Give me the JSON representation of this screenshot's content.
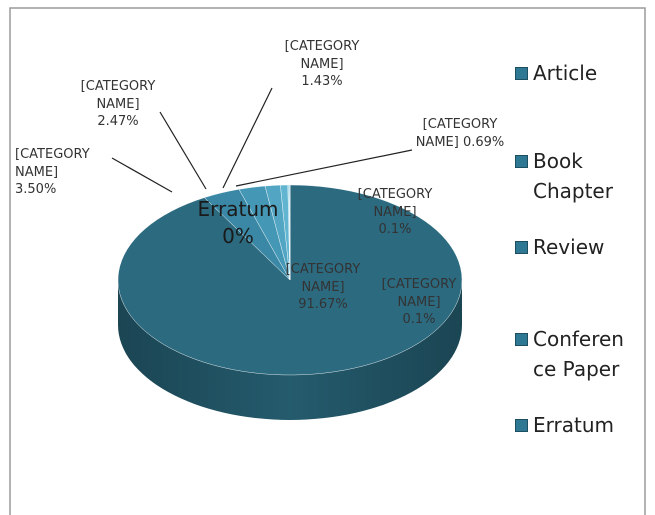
{
  "chart_data": {
    "type": "pie",
    "categories": [
      "[CATEGORY NAME]",
      "[CATEGORY NAME]",
      "[CATEGORY NAME]",
      "[CATEGORY NAME]",
      "[CATEGORY NAME]",
      "[CATEGORY NAME]",
      "[CATEGORY NAME]",
      "Erratum"
    ],
    "values": [
      91.67,
      3.5,
      2.47,
      1.43,
      0.69,
      0.1,
      0.1,
      0
    ],
    "value_labels": [
      "91.67%",
      "3.50%",
      "2.47%",
      "1.43%",
      "0.69%",
      "0.1%",
      "0.1%",
      "0%"
    ],
    "colors": [
      "#2c6a80",
      "#3a88a6",
      "#4597b6",
      "#52a6c4",
      "#62b5d1",
      "#6cbdd8",
      "#78c6df",
      "#86cfe6"
    ],
    "legend": [
      "Article",
      "Book Chapter",
      "Review",
      "Conference Paper",
      "Erratum"
    ],
    "legend_color": "#2f7893"
  }
}
